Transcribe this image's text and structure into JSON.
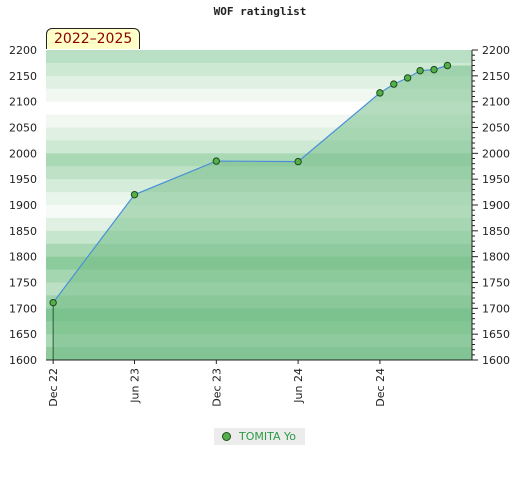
{
  "chart_data": {
    "type": "area",
    "title": "WOF ratinglist",
    "period_label": "2022–2025",
    "ylim": [
      1600,
      2200
    ],
    "y_ticks": [
      "1600",
      "1650",
      "1700",
      "1750",
      "1800",
      "1850",
      "1900",
      "1950",
      "2000",
      "2050",
      "2100",
      "2150",
      "2200"
    ],
    "x_ticks": [
      {
        "label": "Dec 22",
        "date": "2022-12-01"
      },
      {
        "label": "Jun 23",
        "date": "2023-06-01"
      },
      {
        "label": "Dec 23",
        "date": "2023-12-01"
      },
      {
        "label": "Jun 24",
        "date": "2024-06-01"
      },
      {
        "label": "Dec 24",
        "date": "2024-12-01"
      }
    ],
    "xlim": [
      "2022-11-15",
      "2025-06-25"
    ],
    "series": [
      {
        "name": "TOMITA Yo",
        "color": "#54b04a",
        "line_color": "#4a90d9",
        "points": [
          {
            "x": "2022-12-01",
            "y": 1711
          },
          {
            "x": "2023-06-01",
            "y": 1920
          },
          {
            "x": "2023-12-01",
            "y": 1985
          },
          {
            "x": "2024-06-01",
            "y": 1984
          },
          {
            "x": "2024-12-01",
            "y": 2117
          },
          {
            "x": "2025-01-01",
            "y": 2134
          },
          {
            "x": "2025-02-01",
            "y": 2146
          },
          {
            "x": "2025-03-01",
            "y": 2160
          },
          {
            "x": "2025-04-01",
            "y": 2162
          },
          {
            "x": "2025-05-01",
            "y": 2170
          }
        ]
      }
    ],
    "grid": true,
    "legend_position": "bottom-center",
    "colors": {
      "band_dark": "#7fc595",
      "band_light": "#f0f8f1",
      "area_fill": "#78c08a"
    }
  }
}
